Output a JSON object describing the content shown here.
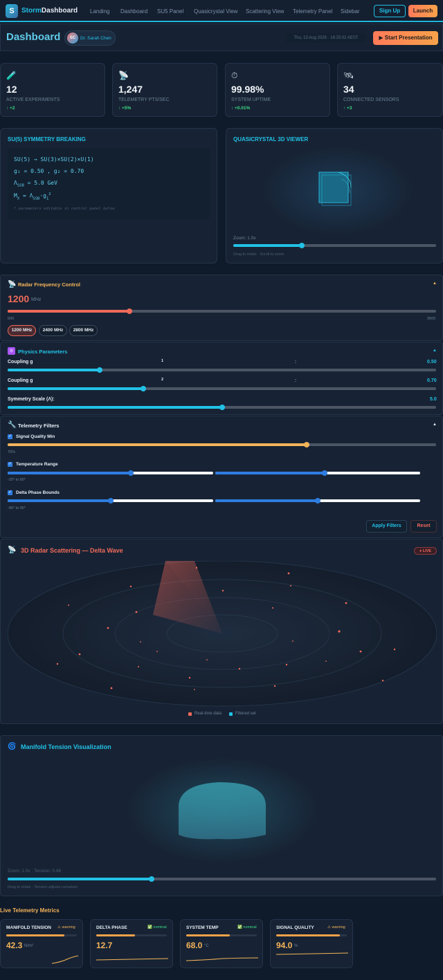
{
  "nav": {
    "logo_letter": "S",
    "brand_a": "Storm",
    "brand_b": "Dashboard",
    "links": [
      "Landing",
      "Dashboard",
      "SU5 Panel",
      "Quasicrystal View",
      "Scattering View",
      "Telemetry Panel",
      "Sidebar"
    ],
    "signup": "Sign Up",
    "launch": "Launch"
  },
  "header": {
    "title": "Dashboard",
    "avatar_initials": "SC",
    "user": "Dr. Sarah Chen",
    "datetime": "Thu, 13 Aug 2026 · 18:25:02 AEST",
    "present": "Start Presentation",
    "present_icon": "play-icon"
  },
  "stats": [
    {
      "icon": "flask-icon",
      "glyph": "🧪",
      "value": "12",
      "label": "ACTIVE EXPERIMENTS",
      "delta": "↑ +2"
    },
    {
      "icon": "satellite-dish-icon",
      "glyph": "📡",
      "value": "1,247",
      "label": "TELEMETRY PTS/SEC",
      "delta": "↑ +5%"
    },
    {
      "icon": "stopwatch-icon",
      "glyph": "⏱",
      "value": "99.98%",
      "label": "SYSTEM UPTIME",
      "delta": "↑ +0.01%"
    },
    {
      "icon": "satellite-icon",
      "glyph": "🛰",
      "value": "34",
      "label": "CONNECTED SENSORS",
      "delta": "↑ +3"
    }
  ],
  "su5": {
    "title": "SU(5) SYMMETRY BREAKING",
    "line1": "SU(5) → SU(3)×SU(2)×U(1)",
    "g1": "g₁ = 0.50 , g₂ = 0.70",
    "lambda": "Λ",
    "lambda_sub": "SSB",
    "lambda_val": " = 5.0 GeV",
    "mx": "M",
    "mx_sub": "X",
    "mx_eq": " = Λ",
    "mx_sub2": "SSB",
    "mx_tail": "·g",
    "mx_sub3": "1",
    "mx_sup": "2",
    "note": "* parameters editable in control panel below"
  },
  "quasi": {
    "title": "QUASICRYSTAL 3D VIEWER",
    "zoom_label": "Zoom: 1.0x",
    "zoom_value": 0.16,
    "hint": "Drag to rotate · Scroll to zoom"
  },
  "radar": {
    "title": "Radar Frequency Control",
    "icon": "satellite-dish-icon",
    "value": "1200",
    "unit": "MHz",
    "min": "600",
    "max": "3600",
    "fraction": 0.2,
    "presets": [
      "1200 MHz",
      "2400 MHz",
      "2800 MHz"
    ],
    "collapse": "▲"
  },
  "physics": {
    "title": "Physics Parameters",
    "icon": "atom-icon",
    "collapse": "▲",
    "params": [
      {
        "label": "Coupling g",
        "sub": "1",
        "colon": ":",
        "value": "0.50",
        "fraction": 0.215
      },
      {
        "label": "Coupling g",
        "sub": "2",
        "colon": ":",
        "value": "0.70",
        "fraction": 0.317
      },
      {
        "label": "Symmetry Scale (Λ):",
        "sub": "",
        "colon": "",
        "value": "5.0",
        "fraction": 0.5
      }
    ]
  },
  "filters": {
    "title": "Telemetry Filters",
    "icon": "wrench-icon",
    "collapse": "▲",
    "signal_label": "Signal Quality Min",
    "signal_value": "70%",
    "signal_fraction": 0.7,
    "temp_label": "Temperature Range",
    "temp_value": "-20° to 80°",
    "delta_label": "Delta Phase Bounds",
    "delta_value": "-90° to 90°",
    "apply": "Apply Filters",
    "reset": "Reset"
  },
  "scatter": {
    "title": "3D Radar Scattering — Delta Wave",
    "icon": "satellite-dish-icon",
    "live": "LIVE",
    "legend_realtime": "Real-time data",
    "legend_filtered": "Filtered set",
    "color_realtime": "#f06a5a",
    "color_filtered": "#22c1e6"
  },
  "manifold": {
    "title": "Manifold Tension Visualization",
    "icon": "cyclone-icon",
    "label": "Zoom: 1.0x · Tension: 0.48",
    "zoom_value": 0.33,
    "hint": "Drag to rotate · Tension adjusts curvature"
  },
  "live": {
    "title": "Live Telemetry Metrics",
    "metrics": [
      {
        "name": "MANIFOLD TENSION",
        "status": "warning",
        "status_icon": "warning-icon",
        "value": "42.3",
        "unit": "N/m²",
        "bar": 0.82
      },
      {
        "name": "DELTA PHASE",
        "status": "nominal",
        "status_icon": "check-icon",
        "value": "12.7",
        "unit": "",
        "bar": 0.55
      },
      {
        "name": "SYSTEM TEMP",
        "status": "nominal",
        "status_icon": "check-icon",
        "value": "68.0",
        "unit": "°C",
        "bar": 0.62
      },
      {
        "name": "SIGNAL QUALITY",
        "status": "warning",
        "status_icon": "warning-icon",
        "value": "94.0",
        "unit": "%",
        "bar": 0.9
      }
    ]
  }
}
